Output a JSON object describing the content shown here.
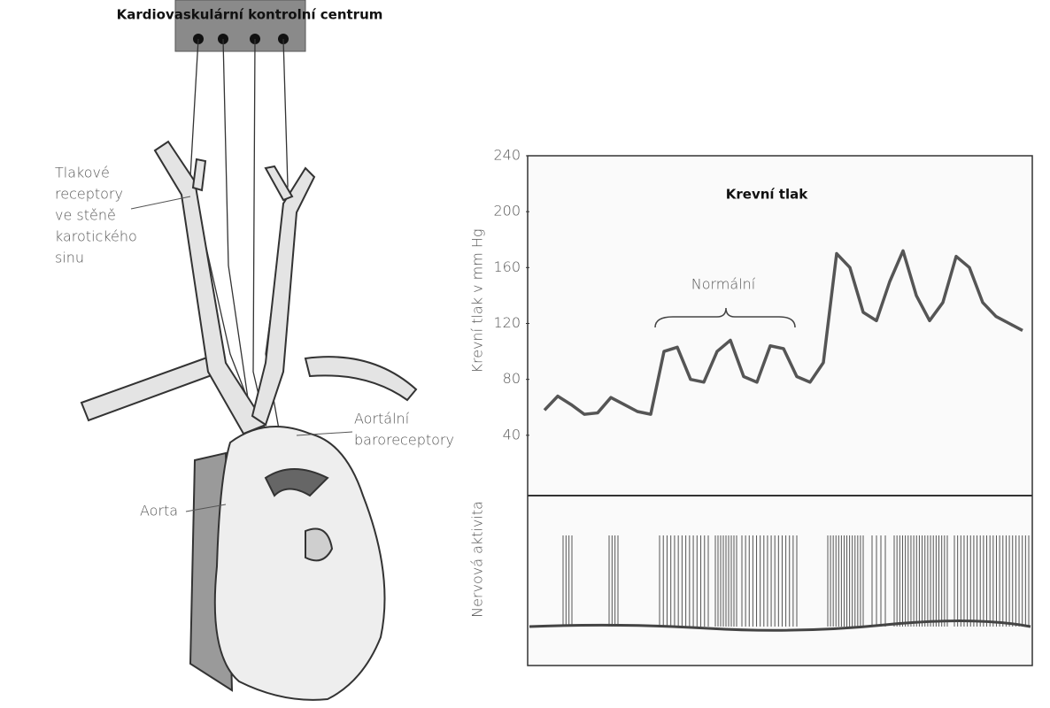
{
  "title": "Kardiovaskulární kontrolní centrum",
  "labels": {
    "carotid": [
      "Tlakové",
      "receptory",
      "ve stěně",
      "karotického",
      "sinu"
    ],
    "aortic": [
      "Aortální",
      "baroreceptory"
    ],
    "aorta": "Aorta"
  },
  "chart_data": {
    "type": "line",
    "title": "Krevní tlak",
    "y_label": "Krevní tlak v mm Hg",
    "lower_label": "Nervová aktivita",
    "annotation": "Normální",
    "values": [
      58,
      68,
      62,
      55,
      56,
      67,
      62,
      57,
      55,
      100,
      103,
      80,
      78,
      100,
      108,
      82,
      78,
      104,
      102,
      82,
      78,
      92,
      170,
      160,
      128,
      122,
      150,
      172,
      140,
      122,
      135,
      168,
      160,
      135,
      125,
      120,
      115
    ],
    "color": "#555555",
    "ylim": [
      0,
      240
    ],
    "yticks": [
      40,
      80,
      120,
      160,
      200,
      240
    ]
  }
}
